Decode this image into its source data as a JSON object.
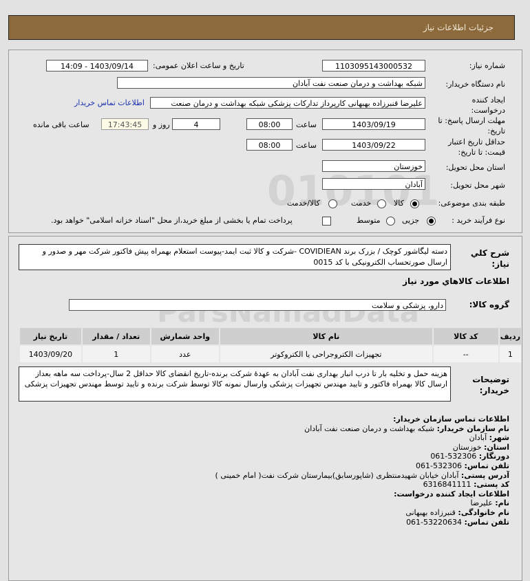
{
  "header": {
    "title": "جزئیات اطلاعات نیاز"
  },
  "form": {
    "need_number_label": "شماره نیاز:",
    "need_number": "1103095143000532",
    "announce_label": "تاریخ و ساعت اعلان عمومی:",
    "announce_value": "1403/09/14 - 14:09",
    "buyer_label": "نام دستگاه خریدار:",
    "buyer": "شبکه بهداشت و درمان صنعت نفت آبادان",
    "creator_label": "ایجاد کننده درخواست:",
    "creator": "علیرضا قنبرزاده بهبهانی کارپرداز تدارکات پزشکی شبکه بهداشت و درمان صنعت",
    "contact_link": "اطلاعات تماس خریدار",
    "reply_label": "مهلت ارسال پاسخ: تا تاریخ:",
    "reply_date": "1403/09/19",
    "time_label": "ساعت",
    "reply_time": "08:00",
    "days": "4",
    "days_label": "روز و",
    "remaining": "17:43:45",
    "remaining_label": "ساعت باقی مانده",
    "validity_label": "حداقل تاریخ اعتبار قیمت: تا تاریخ:",
    "validity_date": "1403/09/22",
    "validity_time": "08:00",
    "province_label": "استان محل تحویل:",
    "province": "خوزستان",
    "city_label": "شهر محل تحویل:",
    "city": "آبادان",
    "category_label": "طبقه بندی موضوعی:",
    "category_options": [
      "کالا",
      "خدمت",
      "کالا/خدمت"
    ],
    "category_selected": "کالا",
    "process_label": "نوع فرآیند خرید :",
    "process_options": [
      "جزیی",
      "متوسط"
    ],
    "process_selected": "جزیی",
    "payment_note": "پرداخت تمام یا بخشی از مبلغ خرید،از محل \"اسناد خزانه اسلامی\" خواهد بود."
  },
  "details": {
    "desc_label": "شرح کلي نياز:",
    "desc": "دسته لیگاشور کوچک / بزرک برند COVIDIEAN -شرکت و کالا ثبت ایمد-پیوست استعلام بهمراه پیش فاکتور شرکت مهر و صدور و ارسال صورتحساب الکترونیکی با کد 0015",
    "goods_title": "اطلاعات کالاهاي مورد نياز",
    "group_label": "گروه کالا:",
    "group": "دارو، پزشکی و سلامت",
    "table": {
      "headers": [
        "ردیف",
        "کد کالا",
        "نام کالا",
        "واحد شمارش",
        "تعداد / مقدار",
        "تاریخ نیاز"
      ],
      "rows": [
        [
          "1",
          "--",
          "تجهیزات الکتروجراحی یا الکتروکوتر",
          "عدد",
          "1",
          "1403/09/20"
        ]
      ]
    },
    "notes_label": "توضیحات خریدار:",
    "notes": "هزینه حمل و تخلیه بار تا درب انبار بهداری نفت آبادان به عهدهٔ شرکت برنده-تاریخ انقضای کالا حداقل 2 سال-پرداخت سه ماهه بعداز ارسال کالا بهمراه فاکتور و تایید مهندس تجهیزات پزشکی وارسال نمونه کالا توسط شرکت برنده و تایید توسط مهندس تجهیزات پزشکی"
  },
  "contact": {
    "title": "اطلاعات تماس سازمان خریدار:",
    "org_label": "نام سازمان خریدار:",
    "org": "شبکه بهداشت و درمان صنعت نفت آبادان",
    "city_label": "شهر:",
    "city": "آبادان",
    "province_label": "استان:",
    "province": "خوزستان",
    "fax_label": "دورنگار:",
    "fax": "061-532306",
    "phone_label": "تلفن تماس:",
    "phone": "061-532306",
    "address_label": "آدرس پستی:",
    "address": "آبادان خیابان شهیدمنتظری (شاپورسابق)بیمارستان شرکت نفت( امام خمینی )",
    "postal_label": "کد پستی:",
    "postal": "6316841111",
    "creator_title": "اطلاعات ایجاد کننده درخواست:",
    "name_label": "نام:",
    "name": "علیرضا",
    "family_label": "نام خانوادگی:",
    "family": "قنبرزاده بهبهانی",
    "cphone_label": "تلفن تماس:",
    "cphone": "061-53220634"
  },
  "watermark": {
    "text": "ParsNamadData"
  }
}
